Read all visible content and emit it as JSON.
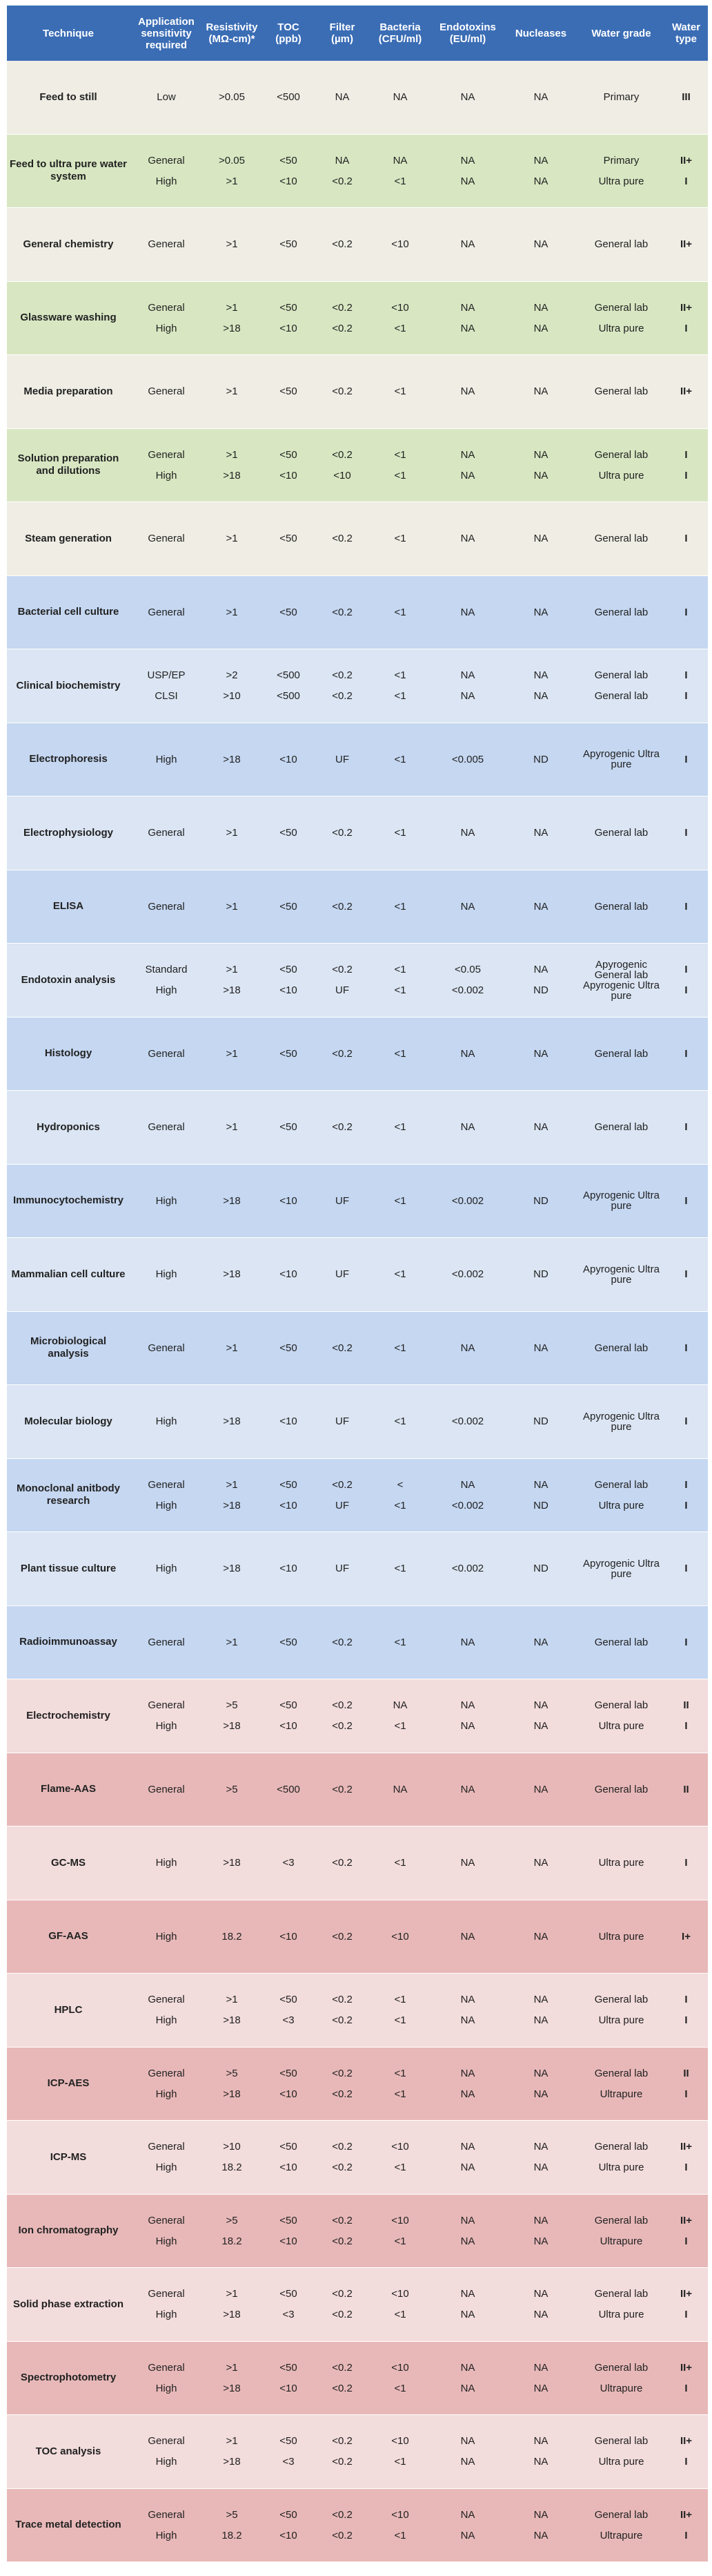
{
  "headers": [
    "Technique",
    "Application sensitivity required",
    "Resistivity (MΩ-cm)*",
    "TOC (ppb)",
    "Filter (µm)",
    "Bacteria (CFU/ml)",
    "Endotoxins (EU/ml)",
    "Nucleases",
    "Water grade",
    "Water type"
  ],
  "colors": {
    "header": "#3b6db5",
    "beige_a": "#efede4",
    "beige_b": "#d8e7c2",
    "blue_a": "#c5d7f1",
    "blue_b": "#dbe5f3",
    "pink_a": "#f3dcdc",
    "pink_b": "#e8b8b8",
    "text": "#222222"
  },
  "rows": [
    {
      "bg": "beige_a",
      "technique": "Feed to still",
      "lines": [
        [
          "Low",
          ">0.05",
          "<500",
          "NA",
          "NA",
          "NA",
          "NA",
          "Primary",
          "III"
        ]
      ]
    },
    {
      "bg": "beige_b",
      "technique": "Feed to ultra pure water system",
      "lines": [
        [
          "General",
          ">0.05",
          "<50",
          "NA",
          "NA",
          "NA",
          "NA",
          "Primary",
          "II+"
        ],
        [
          "High",
          ">1",
          "<10",
          "<0.2",
          "<1",
          "NA",
          "NA",
          "Ultra pure",
          "I"
        ]
      ]
    },
    {
      "bg": "beige_a",
      "technique": "General chemistry",
      "lines": [
        [
          "General",
          ">1",
          "<50",
          "<0.2",
          "<10",
          "NA",
          "NA",
          "General lab",
          "II+"
        ]
      ]
    },
    {
      "bg": "beige_b",
      "technique": "Glassware washing",
      "lines": [
        [
          "General",
          ">1",
          "<50",
          "<0.2",
          "<10",
          "NA",
          "NA",
          "General lab",
          "II+"
        ],
        [
          "High",
          ">18",
          "<10",
          "<0.2",
          "<1",
          "NA",
          "NA",
          "Ultra pure",
          "I"
        ]
      ]
    },
    {
      "bg": "beige_a",
      "technique": "Media preparation",
      "lines": [
        [
          "General",
          ">1",
          "<50",
          "<0.2",
          "<1",
          "NA",
          "NA",
          "General lab",
          "II+"
        ]
      ]
    },
    {
      "bg": "beige_b",
      "technique": "Solution preparation and dilutions",
      "lines": [
        [
          "General",
          ">1",
          "<50",
          "<0.2",
          "<1",
          "NA",
          "NA",
          "General lab",
          "I"
        ],
        [
          "High",
          ">18",
          "<10",
          "<10",
          "<1",
          "NA",
          "NA",
          "Ultra pure",
          "I"
        ]
      ]
    },
    {
      "bg": "beige_a",
      "technique": "Steam generation",
      "lines": [
        [
          "General",
          ">1",
          "<50",
          "<0.2",
          "<1",
          "NA",
          "NA",
          "General lab",
          "I"
        ]
      ]
    },
    {
      "bg": "blue_a",
      "technique": "Bacterial cell culture",
      "lines": [
        [
          "General",
          ">1",
          "<50",
          "<0.2",
          "<1",
          "NA",
          "NA",
          "General lab",
          "I"
        ]
      ]
    },
    {
      "bg": "blue_b",
      "technique": "Clinical biochemistry",
      "lines": [
        [
          "USP/EP",
          ">2",
          "<500",
          "<0.2",
          "<1",
          "NA",
          "NA",
          "General lab",
          "I"
        ],
        [
          "CLSI",
          ">10",
          "<500",
          "<0.2",
          "<1",
          "NA",
          "NA",
          "General lab",
          "I"
        ]
      ]
    },
    {
      "bg": "blue_a",
      "technique": "Electrophoresis",
      "lines": [
        [
          "High",
          ">18",
          "<10",
          "UF",
          "<1",
          "<0.005",
          "ND",
          "Apyrogenic Ultra pure",
          "I"
        ]
      ]
    },
    {
      "bg": "blue_b",
      "technique": "Electrophysiology",
      "lines": [
        [
          "General",
          ">1",
          "<50",
          "<0.2",
          "<1",
          "NA",
          "NA",
          "General lab",
          "I"
        ]
      ]
    },
    {
      "bg": "blue_a",
      "technique": "ELISA",
      "lines": [
        [
          "General",
          ">1",
          "<50",
          "<0.2",
          "<1",
          "NA",
          "NA",
          "General lab",
          "I"
        ]
      ]
    },
    {
      "bg": "blue_b",
      "technique": "Endotoxin analysis",
      "lines": [
        [
          "Standard",
          ">1",
          "<50",
          "<0.2",
          "<1",
          "<0.05",
          "NA",
          "Apyrogenic General lab",
          "I"
        ],
        [
          "High",
          ">18",
          "<10",
          "UF",
          "<1",
          "<0.002",
          "ND",
          "Apyrogenic Ultra pure",
          "I"
        ]
      ]
    },
    {
      "bg": "blue_a",
      "technique": "Histology",
      "lines": [
        [
          "General",
          ">1",
          "<50",
          "<0.2",
          "<1",
          "NA",
          "NA",
          "General lab",
          "I"
        ]
      ]
    },
    {
      "bg": "blue_b",
      "technique": "Hydroponics",
      "lines": [
        [
          "General",
          ">1",
          "<50",
          "<0.2",
          "<1",
          "NA",
          "NA",
          "General lab",
          "I"
        ]
      ]
    },
    {
      "bg": "blue_a",
      "technique": "Immunocytochemistry",
      "lines": [
        [
          "High",
          ">18",
          "<10",
          "UF",
          "<1",
          "<0.002",
          "ND",
          "Apyrogenic Ultra pure",
          "I"
        ]
      ]
    },
    {
      "bg": "blue_b",
      "technique": "Mammalian cell culture",
      "lines": [
        [
          "High",
          ">18",
          "<10",
          "UF",
          "<1",
          "<0.002",
          "ND",
          "Apyrogenic Ultra pure",
          "I"
        ]
      ]
    },
    {
      "bg": "blue_a",
      "technique": "Microbiological analysis",
      "lines": [
        [
          "General",
          ">1",
          "<50",
          "<0.2",
          "<1",
          "NA",
          "NA",
          "General lab",
          "I"
        ]
      ]
    },
    {
      "bg": "blue_b",
      "technique": "Molecular biology",
      "lines": [
        [
          "High",
          ">18",
          "<10",
          "UF",
          "<1",
          "<0.002",
          "ND",
          "Apyrogenic Ultra pure",
          "I"
        ]
      ]
    },
    {
      "bg": "blue_a",
      "technique": "Monoclonal anitbody research",
      "lines": [
        [
          "General",
          ">1",
          "<50",
          "<0.2",
          "<",
          "NA",
          "NA",
          "General lab",
          "I"
        ],
        [
          "High",
          ">18",
          "<10",
          "UF",
          "<1",
          "<0.002",
          "ND",
          "Ultra pure",
          "I"
        ]
      ]
    },
    {
      "bg": "blue_b",
      "technique": "Plant tissue culture",
      "lines": [
        [
          "High",
          ">18",
          "<10",
          "UF",
          "<1",
          "<0.002",
          "ND",
          "Apyrogenic Ultra pure",
          "I"
        ]
      ]
    },
    {
      "bg": "blue_a",
      "technique": "Radioimmunoassay",
      "lines": [
        [
          "General",
          ">1",
          "<50",
          "<0.2",
          "<1",
          "NA",
          "NA",
          "General lab",
          "I"
        ]
      ]
    },
    {
      "bg": "pink_a",
      "technique": "Electrochemistry",
      "lines": [
        [
          "General",
          ">5",
          "<50",
          "<0.2",
          "NA",
          "NA",
          "NA",
          "General lab",
          "II"
        ],
        [
          "High",
          ">18",
          "<10",
          "<0.2",
          "<1",
          "NA",
          "NA",
          "Ultra pure",
          "I"
        ]
      ]
    },
    {
      "bg": "pink_b",
      "technique": "Flame-AAS",
      "lines": [
        [
          "General",
          ">5",
          "<500",
          "<0.2",
          "NA",
          "NA",
          "NA",
          "General lab",
          "II"
        ]
      ]
    },
    {
      "bg": "pink_a",
      "technique": "GC-MS",
      "lines": [
        [
          "High",
          ">18",
          "<3",
          "<0.2",
          "<1",
          "NA",
          "NA",
          "Ultra pure",
          "I"
        ]
      ]
    },
    {
      "bg": "pink_b",
      "technique": "GF-AAS",
      "lines": [
        [
          "High",
          "18.2",
          "<10",
          "<0.2",
          "<10",
          "NA",
          "NA",
          "Ultra pure",
          "I+"
        ]
      ]
    },
    {
      "bg": "pink_a",
      "technique": "HPLC",
      "lines": [
        [
          "General",
          ">1",
          "<50",
          "<0.2",
          "<1",
          "NA",
          "NA",
          "General lab",
          "I"
        ],
        [
          "High",
          ">18",
          "<3",
          "<0.2",
          "<1",
          "NA",
          "NA",
          "Ultra pure",
          "I"
        ]
      ]
    },
    {
      "bg": "pink_b",
      "technique": "ICP-AES",
      "lines": [
        [
          "General",
          ">5",
          "<50",
          "<0.2",
          "<1",
          "NA",
          "NA",
          "General lab",
          "II"
        ],
        [
          "High",
          ">18",
          "<10",
          "<0.2",
          "<1",
          "NA",
          "NA",
          "Ultrapure",
          "I"
        ]
      ]
    },
    {
      "bg": "pink_a",
      "technique": "ICP-MS",
      "lines": [
        [
          "General",
          ">10",
          "<50",
          "<0.2",
          "<10",
          "NA",
          "NA",
          "General lab",
          "II+"
        ],
        [
          "High",
          "18.2",
          "<10",
          "<0.2",
          "<1",
          "NA",
          "NA",
          "Ultra pure",
          "I"
        ]
      ]
    },
    {
      "bg": "pink_b",
      "technique": "Ion chromatography",
      "lines": [
        [
          "General",
          ">5",
          "<50",
          "<0.2",
          "<10",
          "NA",
          "NA",
          "General lab",
          "II+"
        ],
        [
          "High",
          "18.2",
          "<10",
          "<0.2",
          "<1",
          "NA",
          "NA",
          "Ultrapure",
          "I"
        ]
      ]
    },
    {
      "bg": "pink_a",
      "technique": "Solid phase extraction",
      "lines": [
        [
          "General",
          ">1",
          "<50",
          "<0.2",
          "<10",
          "NA",
          "NA",
          "General lab",
          "II+"
        ],
        [
          "High",
          ">18",
          "<3",
          "<0.2",
          "<1",
          "NA",
          "NA",
          "Ultra pure",
          "I"
        ]
      ]
    },
    {
      "bg": "pink_b",
      "technique": "Spectrophotometry",
      "lines": [
        [
          "General",
          ">1",
          "<50",
          "<0.2",
          "<10",
          "NA",
          "NA",
          "General lab",
          "II+"
        ],
        [
          "High",
          ">18",
          "<10",
          "<0.2",
          "<1",
          "NA",
          "NA",
          "Ultrapure",
          "I"
        ]
      ]
    },
    {
      "bg": "pink_a",
      "technique": "TOC analysis",
      "lines": [
        [
          "General",
          ">1",
          "<50",
          "<0.2",
          "<10",
          "NA",
          "NA",
          "General lab",
          "II+"
        ],
        [
          "High",
          ">18",
          "<3",
          "<0.2",
          "<1",
          "NA",
          "NA",
          "Ultra pure",
          "I"
        ]
      ]
    },
    {
      "bg": "pink_b",
      "technique": "Trace metal detection",
      "lines": [
        [
          "General",
          ">5",
          "<50",
          "<0.2",
          "<10",
          "NA",
          "NA",
          "General lab",
          "II+"
        ],
        [
          "High",
          "18.2",
          "<10",
          "<0.2",
          "<1",
          "NA",
          "NA",
          "Ultrapure",
          "I"
        ]
      ]
    }
  ]
}
